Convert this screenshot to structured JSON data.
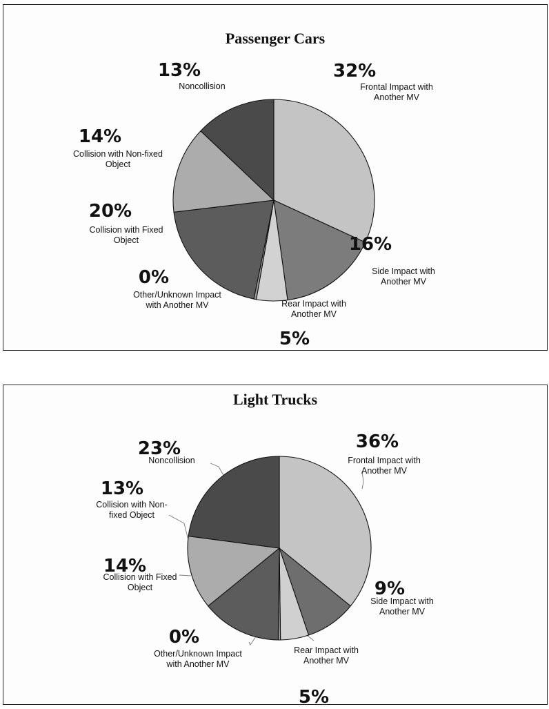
{
  "chart_data": [
    {
      "type": "pie",
      "title": "Passenger Cars",
      "slices": [
        {
          "label": "Frontal Impact with Another MV",
          "label_lines": [
            "Frontal Impact with",
            "Another MV"
          ],
          "percent_text": "32%",
          "value": 32,
          "color": "#c4c4c4"
        },
        {
          "label": "Side Impact with Another MV",
          "label_lines": [
            "Side Impact with",
            "Another MV"
          ],
          "percent_text": "16%",
          "value": 16,
          "color": "#7c7c7c"
        },
        {
          "label": "Rear Impact with Another MV",
          "label_lines": [
            "Rear Impact with",
            "Another MV"
          ],
          "percent_text": "5%",
          "value": 5,
          "color": "#d2d2d2"
        },
        {
          "label": "Other/Unknown Impact with Another MV",
          "label_lines": [
            "Other/Unknown Impact",
            "with Another MV"
          ],
          "percent_text": "0%",
          "value": 0.4,
          "color": "#9a9a9a"
        },
        {
          "label": "Collision with Fixed Object",
          "label_lines": [
            "Collision with Fixed",
            "Object"
          ],
          "percent_text": "20%",
          "value": 20,
          "color": "#5c5c5c"
        },
        {
          "label": "Collision with Non-fixed Object",
          "label_lines": [
            "Collision with Non-fixed",
            "Object"
          ],
          "percent_text": "14%",
          "value": 14,
          "color": "#acacac"
        },
        {
          "label": "Noncollision",
          "label_lines": [
            "Noncollision"
          ],
          "percent_text": "13%",
          "value": 13,
          "color": "#4a4a4a"
        }
      ]
    },
    {
      "type": "pie",
      "title": "Light Trucks",
      "slices": [
        {
          "label": "Frontal Impact with Another MV",
          "label_lines": [
            "Frontal Impact with",
            "Another MV"
          ],
          "percent_text": "36%",
          "value": 36,
          "color": "#c4c4c4"
        },
        {
          "label": "Side Impact with Another MV",
          "label_lines": [
            "Side Impact with",
            "Another MV"
          ],
          "percent_text": "9%",
          "value": 9,
          "color": "#6e6e6e"
        },
        {
          "label": "Rear Impact with Another MV",
          "label_lines": [
            "Rear Impact with",
            "Another MV"
          ],
          "percent_text": "5%",
          "value": 5,
          "color": "#d0d0d0"
        },
        {
          "label": "Other/Unknown Impact with Another MV",
          "label_lines": [
            "Other/Unknown Impact",
            "with Another MV"
          ],
          "percent_text": "0%",
          "value": 0.4,
          "color": "#9a9a9a"
        },
        {
          "label": "Collision with Fixed Object",
          "label_lines": [
            "Collision with Fixed",
            "Object"
          ],
          "percent_text": "14%",
          "value": 14,
          "color": "#5c5c5c"
        },
        {
          "label": "Collision with Non-fixed Object",
          "label_lines": [
            "Collision with Non-",
            "fixed Object"
          ],
          "percent_text": "13%",
          "value": 13,
          "color": "#acacac"
        },
        {
          "label": "Noncollision",
          "label_lines": [
            "Noncollision"
          ],
          "percent_text": "23%",
          "value": 23,
          "color": "#4a4a4a"
        }
      ]
    }
  ]
}
